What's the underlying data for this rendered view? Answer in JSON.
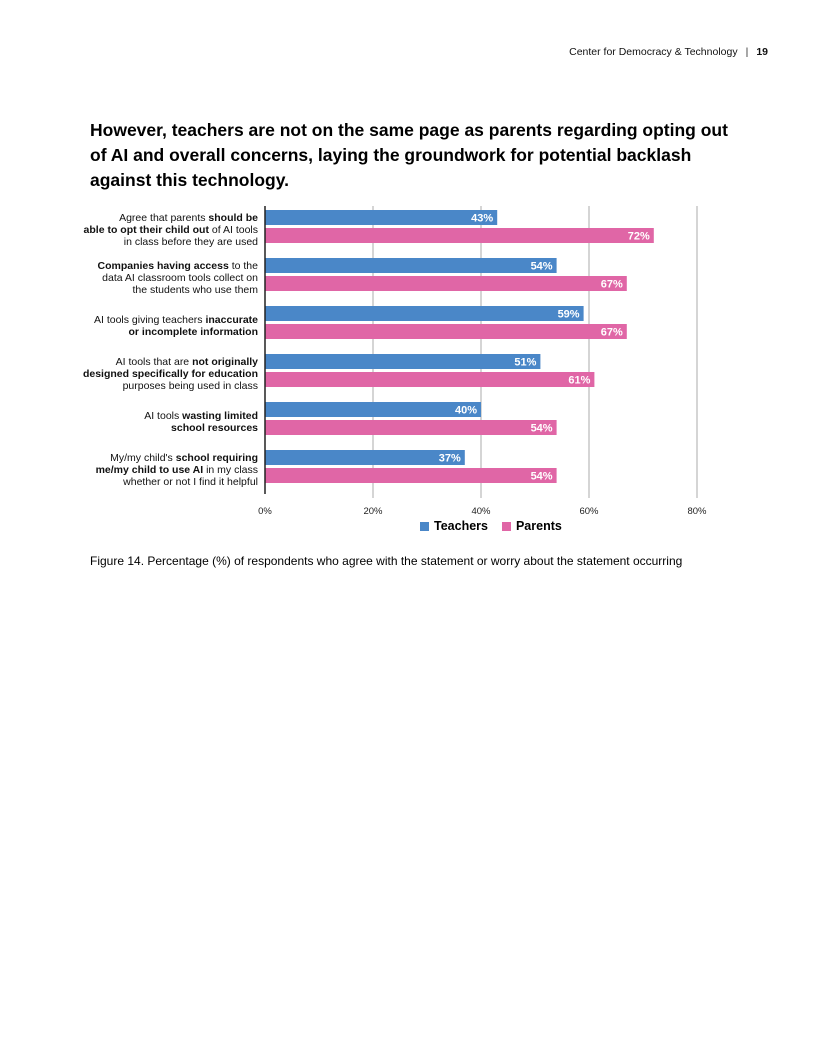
{
  "header": {
    "organization": "Center for Democracy & Technology",
    "separator": "|",
    "page_number": "19"
  },
  "heading": "However, teachers are not on the same page as parents regarding opting out of AI and overall concerns, laying the groundwork for potential backlash against this technology.",
  "caption": "Figure 14. Percentage (%) of respondents who agree with the statement or worry about the statement occurring",
  "colors": {
    "teachers": "#4a87c8",
    "parents": "#e066a6",
    "grid": "#b9b9b9",
    "axis": "#222222"
  },
  "chart_data": {
    "type": "bar",
    "orientation": "horizontal",
    "xlim": [
      0,
      80
    ],
    "x_ticks": [
      "0%",
      "20%",
      "40%",
      "60%",
      "80%"
    ],
    "categories": [
      [
        {
          "t": "Agree that parents "
        },
        {
          "t": "should be",
          "b": true
        },
        {
          "br": true
        },
        {
          "t": "able to opt their child out",
          "b": true
        },
        {
          "t": " of AI tools"
        },
        {
          "br": true
        },
        {
          "t": "in class before they are used"
        }
      ],
      [
        {
          "t": "Companies having access",
          "b": true
        },
        {
          "t": " to the"
        },
        {
          "br": true
        },
        {
          "t": "data AI classroom tools collect on"
        },
        {
          "br": true
        },
        {
          "t": "the students who use them"
        }
      ],
      [
        {
          "t": "AI tools giving teachers "
        },
        {
          "t": "inaccurate",
          "b": true
        },
        {
          "br": true
        },
        {
          "t": "or incomplete information",
          "b": true
        }
      ],
      [
        {
          "t": "AI tools that are "
        },
        {
          "t": "not originally",
          "b": true
        },
        {
          "br": true
        },
        {
          "t": "designed specifically for education",
          "b": true
        },
        {
          "br": true
        },
        {
          "t": "purposes being used in class"
        }
      ],
      [
        {
          "t": "AI tools "
        },
        {
          "t": "wasting limited",
          "b": true
        },
        {
          "br": true
        },
        {
          "t": "school resources",
          "b": true
        }
      ],
      [
        {
          "t": "My/my child's "
        },
        {
          "t": "school requiring",
          "b": true
        },
        {
          "br": true
        },
        {
          "t": "me/my child to use AI",
          "b": true
        },
        {
          "t": " in my class"
        },
        {
          "br": true
        },
        {
          "t": "whether or not I find it helpful"
        }
      ]
    ],
    "series": [
      {
        "name": "Teachers",
        "values": [
          43,
          54,
          59,
          51,
          40,
          37
        ],
        "labels": [
          "43%",
          "54%",
          "59%",
          "51%",
          "40%",
          "37%"
        ]
      },
      {
        "name": "Parents",
        "values": [
          72,
          67,
          67,
          61,
          54,
          54
        ],
        "labels": [
          "72%",
          "67%",
          "67%",
          "61%",
          "54%",
          "54%"
        ]
      }
    ]
  }
}
